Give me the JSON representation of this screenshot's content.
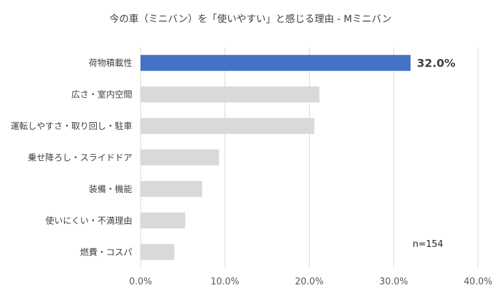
{
  "chart_data": {
    "type": "bar",
    "orientation": "horizontal",
    "title": "今の車（ミニバン）を「使いやすい」と感じる理由 - Mミニバン",
    "categories": [
      "荷物積載性",
      "広さ・室内空間",
      "運転しやすさ・取り回し・駐車",
      "乗せ降ろし・スライドドア",
      "装備・機能",
      "使いにくい・不満理由",
      "燃費・コスパ"
    ],
    "values": [
      32.0,
      21.2,
      20.6,
      9.3,
      7.3,
      5.3,
      4.0
    ],
    "highlight_index": 0,
    "data_labels": [
      "32.0%"
    ],
    "xlim": [
      0,
      40
    ],
    "xticks": [
      "0.0%",
      "10.0%",
      "20.0%",
      "30.0%",
      "40.0%"
    ],
    "xtick_values": [
      0,
      10,
      20,
      30,
      40
    ],
    "annotation": "n=154",
    "colors": {
      "highlight": "#4472c4",
      "normal": "#d9d9d9"
    },
    "grid": true
  }
}
